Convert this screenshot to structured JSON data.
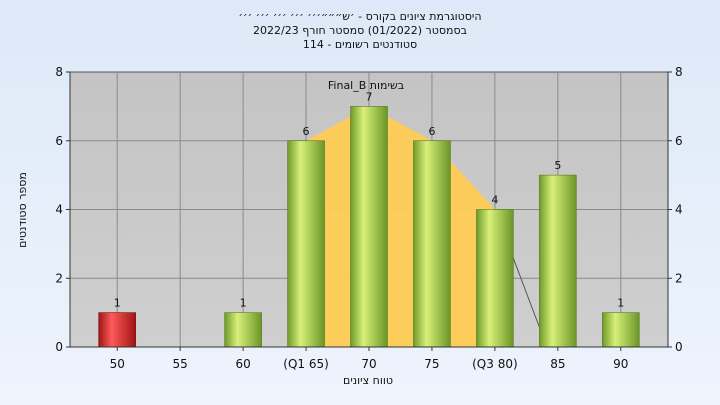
{
  "header": {
    "line1": "היסטוגרמת ציונים בקורס - ׳ש״״״׳׳׳ ׳׳׳ ׳׳׳ ׳׳׳ ׳׳׳",
    "line2": "בסמסטר  (01/2022)  סמסטר חורף  2022/23",
    "line3": "סטודנטים רשומים - 114"
  },
  "chart_data": {
    "type": "bar",
    "categories": [
      "50",
      "55",
      "60",
      "(Q1 65)",
      "70",
      "75",
      "(Q3 80)",
      "85",
      "90"
    ],
    "values": [
      1,
      0,
      1,
      6,
      7,
      6,
      4,
      5,
      1
    ],
    "bar_colors": [
      "#d92020",
      "#8fb83a",
      "#8fb83a",
      "#8fb83a",
      "#8fb83a",
      "#8fb83a",
      "#8fb83a",
      "#8fb83a",
      "#8fb83a"
    ],
    "data_labels": [
      "1",
      "",
      "1",
      "6",
      "7",
      "6",
      "4",
      "5",
      "1"
    ],
    "annotation": "Final_B בשימות",
    "xlabel": "טווח ציונים",
    "ylabel": "מספר סטודנטים",
    "ylim": [
      0,
      8
    ],
    "yticks": [
      0,
      2,
      4,
      6,
      8
    ],
    "grid": true,
    "right_axis": true,
    "area_band": {
      "start_index": 3,
      "end_index": 6,
      "color": "#ffcc55"
    }
  }
}
